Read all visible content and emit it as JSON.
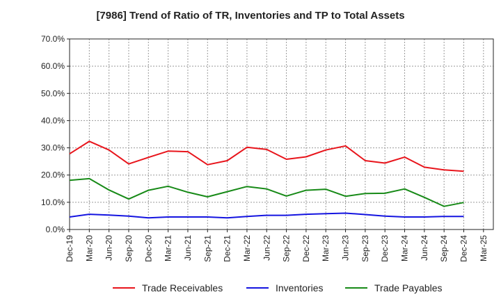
{
  "title": "[7986]  Trend of Ratio of TR, Inventories and TP to Total Assets",
  "chart_data": {
    "type": "line",
    "title": "[7986]  Trend of Ratio of TR, Inventories and TP to Total Assets",
    "xlabel": "",
    "ylabel": "",
    "ylim": [
      0,
      70
    ],
    "y_tick_values": [
      0,
      10,
      20,
      30,
      40,
      50,
      60,
      70
    ],
    "y_tick_labels": [
      "0.0%",
      "10.0%",
      "20.0%",
      "30.0%",
      "40.0%",
      "50.0%",
      "60.0%",
      "70.0%"
    ],
    "x_tick_labels": [
      "Dec-19",
      "Mar-20",
      "Jun-20",
      "Sep-20",
      "Dec-20",
      "Mar-21",
      "Jun-21",
      "Sep-21",
      "Dec-21",
      "Mar-22",
      "Jun-22",
      "Sep-22",
      "Dec-22",
      "Mar-23",
      "Jun-23",
      "Sep-23",
      "Dec-23",
      "Mar-24",
      "Jun-24",
      "Sep-24",
      "Dec-24",
      "Mar-25"
    ],
    "x": [
      "Dec-19",
      "Mar-20",
      "Jun-20",
      "Sep-20",
      "Dec-20",
      "Mar-21",
      "Jun-21",
      "Sep-21",
      "Dec-21",
      "Mar-22",
      "Jun-22",
      "Sep-22",
      "Dec-22",
      "Mar-23",
      "Jun-23",
      "Sep-23",
      "Dec-23",
      "Mar-24",
      "Jun-24",
      "Sep-24",
      "Dec-24"
    ],
    "grid": true,
    "legend_position": "bottom",
    "series": [
      {
        "name": "Trade Receivables",
        "color": "#e8141b",
        "values": [
          27.8,
          32.4,
          29.2,
          24.1,
          26.5,
          28.8,
          28.6,
          23.8,
          25.3,
          30.2,
          29.4,
          25.8,
          26.7,
          29.2,
          30.7,
          25.3,
          24.4,
          26.6,
          22.9,
          21.9,
          21.4
        ]
      },
      {
        "name": "Inventories",
        "color": "#1414e0",
        "values": [
          4.6,
          5.6,
          5.3,
          4.9,
          4.3,
          4.6,
          4.6,
          4.6,
          4.3,
          4.8,
          5.2,
          5.2,
          5.6,
          5.8,
          6.0,
          5.5,
          4.9,
          4.6,
          4.6,
          4.8,
          4.8
        ]
      },
      {
        "name": "Trade Payables",
        "color": "#178a17",
        "values": [
          18.1,
          18.7,
          14.5,
          11.2,
          14.4,
          15.9,
          13.7,
          12.0,
          13.9,
          15.8,
          14.9,
          12.3,
          14.4,
          14.8,
          12.2,
          13.2,
          13.3,
          14.9,
          11.8,
          8.5,
          9.9
        ]
      }
    ]
  }
}
